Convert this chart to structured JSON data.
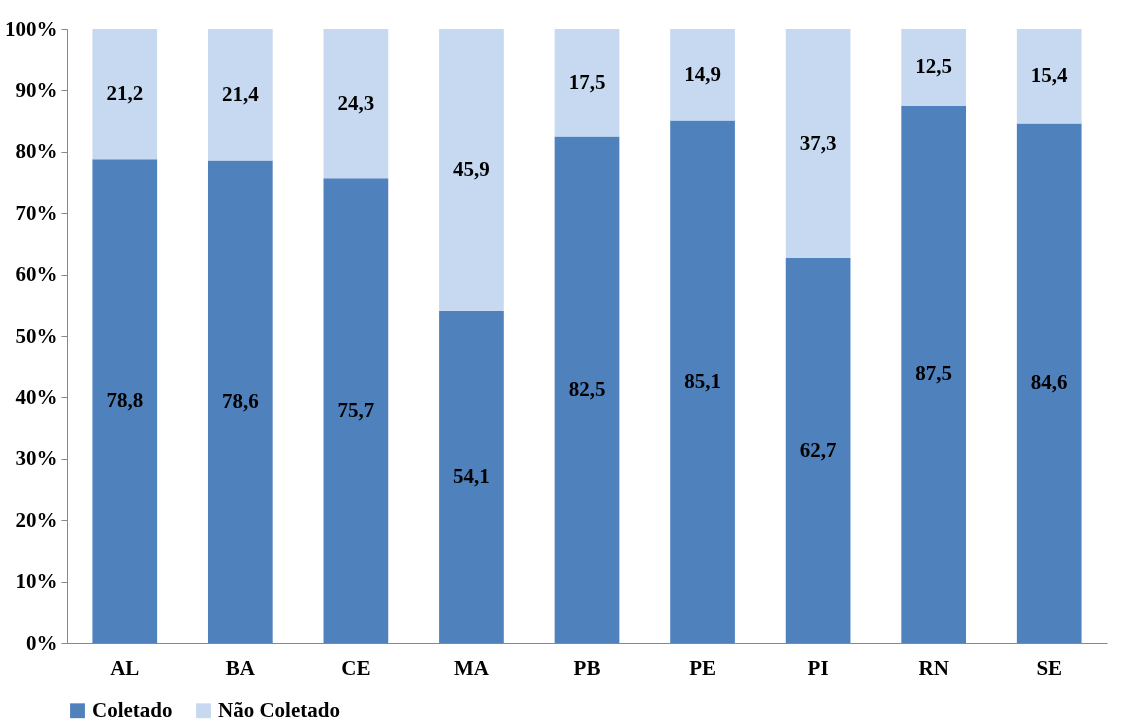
{
  "chart_data": {
    "type": "bar",
    "stacked": true,
    "categories": [
      "AL",
      "BA",
      "CE",
      "MA",
      "PB",
      "PE",
      "PI",
      "RN",
      "SE"
    ],
    "series": [
      {
        "name": "Coletado",
        "color": "#4f81bd",
        "values": [
          78.8,
          78.6,
          75.7,
          54.1,
          82.5,
          85.1,
          62.7,
          87.5,
          84.6
        ],
        "value_labels": [
          "78,8",
          "78,6",
          "75,7",
          "54,1",
          "82,5",
          "85,1",
          "62,7",
          "87,5",
          "84,6"
        ]
      },
      {
        "name": "Não Coletado",
        "color": "#c6d9f1",
        "values": [
          21.2,
          21.4,
          24.3,
          45.9,
          17.5,
          14.9,
          37.3,
          12.5,
          15.4
        ],
        "value_labels": [
          "21,2",
          "21,4",
          "24,3",
          "45,9",
          "17,5",
          "14,9",
          "37,3",
          "12,5",
          "15,4"
        ]
      }
    ],
    "ylim": [
      0,
      100
    ],
    "yticks": [
      {
        "value": 0,
        "label": "0%"
      },
      {
        "value": 10,
        "label": "10%"
      },
      {
        "value": 20,
        "label": "20%"
      },
      {
        "value": 30,
        "label": "30%"
      },
      {
        "value": 40,
        "label": "40%"
      },
      {
        "value": 50,
        "label": "50%"
      },
      {
        "value": 60,
        "label": "60%"
      },
      {
        "value": 70,
        "label": "70%"
      },
      {
        "value": 80,
        "label": "80%"
      },
      {
        "value": 90,
        "label": "90%"
      },
      {
        "value": 100,
        "label": "100%"
      }
    ],
    "grid": false,
    "legend": "bottom"
  }
}
